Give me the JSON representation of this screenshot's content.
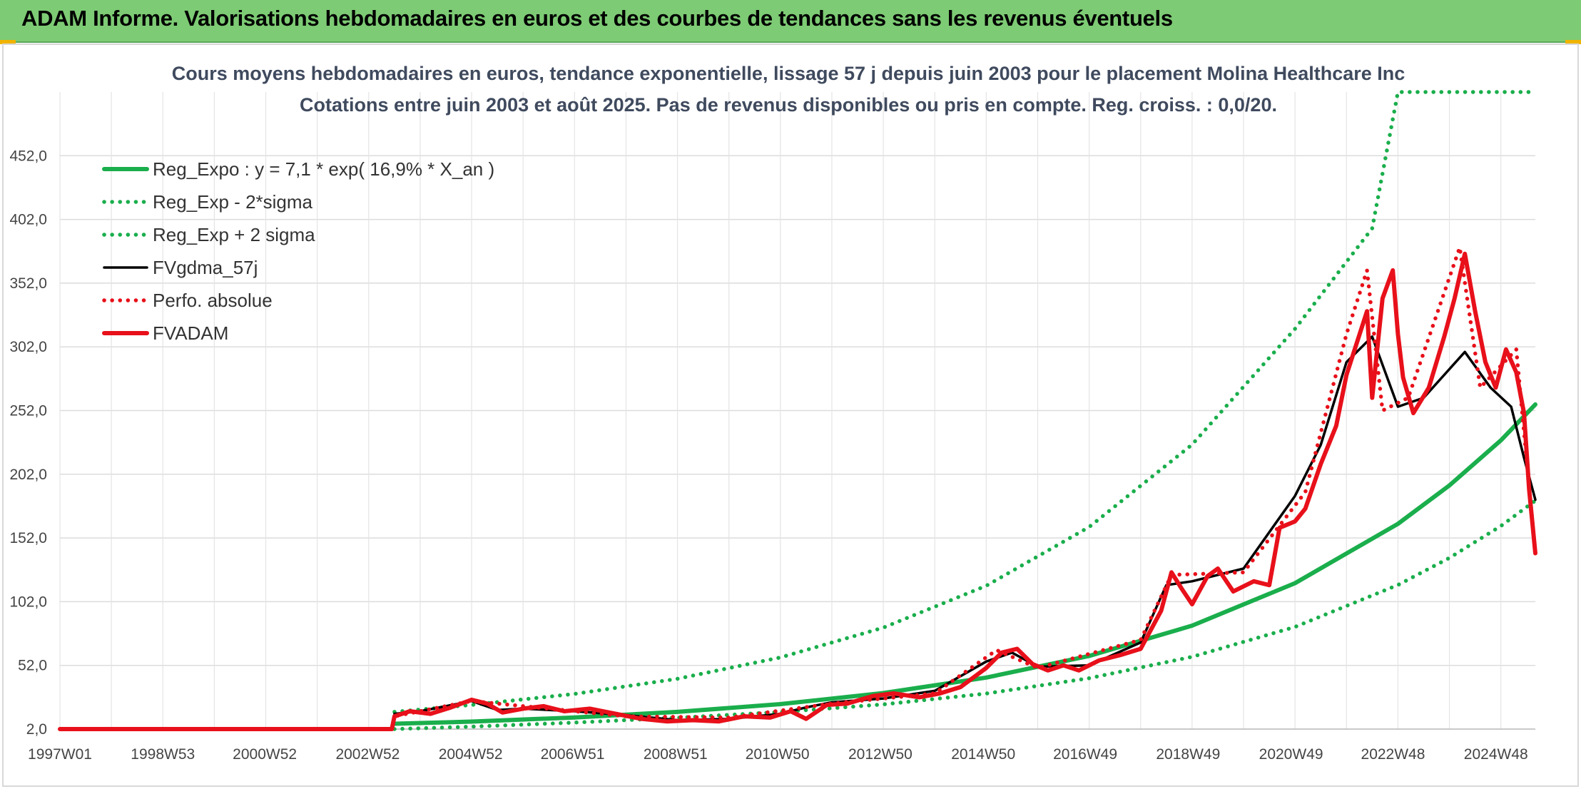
{
  "header": {
    "title": "ADAM Informe. Valorisations hebdomadaires en euros et des courbes de tendances sans les revenus éventuels"
  },
  "chart_data": {
    "type": "line",
    "title": "Cours moyens hebdomadaires en euros, tendance exponentielle, lissage 57 j depuis juin 2003 pour le placement Molina Healthcare Inc",
    "subtitle": "Cotations entre juin 2003 et août 2025. Pas de revenus disponibles ou pris en compte. Reg. croiss. : 0,0/20.",
    "xlabel": "",
    "ylabel": "",
    "x_ticks": [
      "1997W01",
      "1998W53",
      "2000W52",
      "2002W52",
      "2004W52",
      "2006W51",
      "2008W51",
      "2010W50",
      "2012W50",
      "2014W50",
      "2016W49",
      "2018W49",
      "2020W49",
      "2022W48",
      "2024W48"
    ],
    "y_ticks": [
      "2,0",
      "52,0",
      "102,0",
      "152,0",
      "202,0",
      "252,0",
      "302,0",
      "352,0",
      "402,0",
      "452,0"
    ],
    "x_range": [
      1997.0,
      2025.67
    ],
    "ylim": [
      2,
      502
    ],
    "grid": true,
    "legend_position": "top-left",
    "series": [
      {
        "name": "Reg_Expo : y = 7,1 * exp( 16,9% *  X_an )",
        "color": "#1aae4c",
        "style": "solid-thick",
        "points": [
          [
            2003.5,
            6.2
          ],
          [
            2005,
            7.9
          ],
          [
            2007,
            11.1
          ],
          [
            2009,
            15.5
          ],
          [
            2011,
            21.6
          ],
          [
            2013,
            30.3
          ],
          [
            2015,
            42.4
          ],
          [
            2017,
            59.4
          ],
          [
            2019,
            83.2
          ],
          [
            2021,
            116.5
          ],
          [
            2023,
            163.1
          ],
          [
            2024,
            193.2
          ],
          [
            2025,
            228.6
          ],
          [
            2025.67,
            256.8
          ]
        ]
      },
      {
        "name": "Reg_Exp - 2*sigma",
        "color": "#1aae4c",
        "style": "dotted",
        "points": [
          [
            2003.5,
            2.0
          ],
          [
            2005,
            3.9
          ],
          [
            2007,
            7.1
          ],
          [
            2009,
            10.9
          ],
          [
            2011,
            15.4
          ],
          [
            2013,
            21.4
          ],
          [
            2015,
            29.9
          ],
          [
            2017,
            41.9
          ],
          [
            2019,
            58.7
          ],
          [
            2021,
            82.2
          ],
          [
            2023,
            115.1
          ],
          [
            2024,
            136.3
          ],
          [
            2025,
            161.4
          ],
          [
            2025.67,
            181.3
          ]
        ]
      },
      {
        "name": "Reg_Exp + 2 sigma",
        "color": "#1aae4c",
        "style": "dotted",
        "points": [
          [
            2003.5,
            15.5
          ],
          [
            2005,
            21
          ],
          [
            2007,
            29.6
          ],
          [
            2009,
            41.5
          ],
          [
            2011,
            58.2
          ],
          [
            2013,
            81.6
          ],
          [
            2015,
            114.5
          ],
          [
            2017,
            160.6
          ],
          [
            2019,
            225.3
          ],
          [
            2021,
            316.1
          ],
          [
            2022.5,
            395
          ],
          [
            2023,
            502
          ],
          [
            2025.67,
            502
          ]
        ]
      },
      {
        "name": "FVgdma_57j",
        "color": "#000000",
        "style": "solid",
        "points": [
          [
            2003.5,
            14
          ],
          [
            2004,
            16
          ],
          [
            2005,
            24
          ],
          [
            2005.5,
            17
          ],
          [
            2006,
            18
          ],
          [
            2007,
            16
          ],
          [
            2008,
            13
          ],
          [
            2009,
            9
          ],
          [
            2010,
            10
          ],
          [
            2011,
            14
          ],
          [
            2011.5,
            19
          ],
          [
            2012,
            23
          ],
          [
            2013,
            26
          ],
          [
            2014,
            32
          ],
          [
            2015,
            55
          ],
          [
            2015.5,
            62
          ],
          [
            2016,
            51
          ],
          [
            2017,
            52
          ],
          [
            2018,
            70
          ],
          [
            2018.5,
            115
          ],
          [
            2019,
            118
          ],
          [
            2020,
            128
          ],
          [
            2021,
            185
          ],
          [
            2021.5,
            225
          ],
          [
            2022,
            290
          ],
          [
            2022.5,
            310
          ],
          [
            2023,
            255
          ],
          [
            2023.5,
            262
          ],
          [
            2024.3,
            298
          ],
          [
            2024.8,
            270
          ],
          [
            2025.2,
            255
          ],
          [
            2025.45,
            215
          ],
          [
            2025.67,
            182
          ]
        ]
      },
      {
        "name": "Perfo. absolue",
        "color": "#e8101a",
        "style": "dotted",
        "points": [
          [
            1997.0,
            2
          ],
          [
            2003.45,
            2
          ],
          [
            2003.5,
            12
          ],
          [
            2005,
            24
          ],
          [
            2008,
            12
          ],
          [
            2010,
            11
          ],
          [
            2012,
            22
          ],
          [
            2014,
            30
          ],
          [
            2015.2,
            64
          ],
          [
            2016,
            50
          ],
          [
            2018,
            72
          ],
          [
            2018.6,
            123
          ],
          [
            2020,
            125
          ],
          [
            2021.2,
            188
          ],
          [
            2022,
            312
          ],
          [
            2022.4,
            362
          ],
          [
            2022.7,
            252
          ],
          [
            2023.2,
            262
          ],
          [
            2024.2,
            380
          ],
          [
            2024.6,
            270
          ],
          [
            2025.3,
            300
          ],
          [
            2025.67,
            140
          ]
        ]
      },
      {
        "name": "FVADAM",
        "color": "#e8101a",
        "style": "solid-thick",
        "points": [
          [
            1997.0,
            2
          ],
          [
            2003.45,
            2
          ],
          [
            2003.5,
            12
          ],
          [
            2003.8,
            16
          ],
          [
            2004.2,
            14
          ],
          [
            2004.6,
            19
          ],
          [
            2005,
            25
          ],
          [
            2005.3,
            22
          ],
          [
            2005.6,
            15
          ],
          [
            2006,
            18
          ],
          [
            2006.4,
            20
          ],
          [
            2006.8,
            16
          ],
          [
            2007.3,
            18
          ],
          [
            2007.8,
            14
          ],
          [
            2008.3,
            10
          ],
          [
            2008.8,
            8
          ],
          [
            2009.3,
            9
          ],
          [
            2009.8,
            8
          ],
          [
            2010.3,
            12
          ],
          [
            2010.8,
            11
          ],
          [
            2011.2,
            16
          ],
          [
            2011.5,
            10
          ],
          [
            2011.9,
            21
          ],
          [
            2012.3,
            22
          ],
          [
            2012.8,
            28
          ],
          [
            2013.2,
            30
          ],
          [
            2013.7,
            27
          ],
          [
            2014.1,
            30
          ],
          [
            2014.5,
            35
          ],
          [
            2015,
            50
          ],
          [
            2015.3,
            62
          ],
          [
            2015.6,
            65
          ],
          [
            2015.9,
            53
          ],
          [
            2016.2,
            48
          ],
          [
            2016.5,
            52
          ],
          [
            2016.8,
            48
          ],
          [
            2017.2,
            56
          ],
          [
            2017.6,
            60
          ],
          [
            2018,
            65
          ],
          [
            2018.4,
            95
          ],
          [
            2018.6,
            125
          ],
          [
            2018.8,
            112
          ],
          [
            2019,
            100
          ],
          [
            2019.3,
            122
          ],
          [
            2019.5,
            128
          ],
          [
            2019.8,
            110
          ],
          [
            2020.2,
            118
          ],
          [
            2020.5,
            115
          ],
          [
            2020.7,
            160
          ],
          [
            2021,
            165
          ],
          [
            2021.2,
            175
          ],
          [
            2021.5,
            210
          ],
          [
            2021.8,
            240
          ],
          [
            2022,
            280
          ],
          [
            2022.2,
            305
          ],
          [
            2022.4,
            330
          ],
          [
            2022.5,
            262
          ],
          [
            2022.7,
            340
          ],
          [
            2022.9,
            362
          ],
          [
            2023,
            312
          ],
          [
            2023.1,
            278
          ],
          [
            2023.3,
            250
          ],
          [
            2023.6,
            270
          ],
          [
            2023.9,
            310
          ],
          [
            2024.1,
            340
          ],
          [
            2024.3,
            375
          ],
          [
            2024.5,
            330
          ],
          [
            2024.7,
            290
          ],
          [
            2024.9,
            270
          ],
          [
            2025.1,
            300
          ],
          [
            2025.3,
            282
          ],
          [
            2025.45,
            250
          ],
          [
            2025.55,
            190
          ],
          [
            2025.67,
            140
          ]
        ]
      }
    ]
  }
}
